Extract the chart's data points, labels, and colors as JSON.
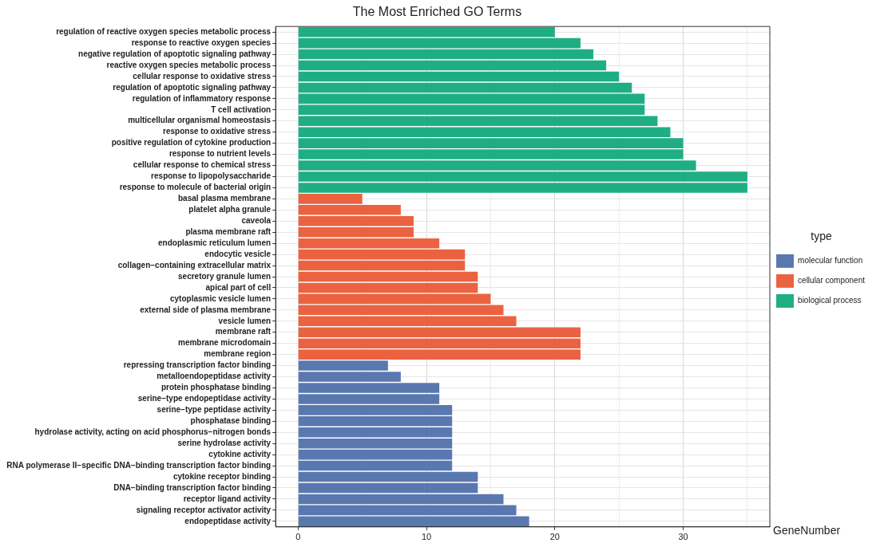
{
  "chart_data": {
    "type": "bar",
    "orientation": "horizontal",
    "title": "The Most Enriched GO Terms",
    "xlabel": "GeneNumber",
    "legend_title": "type",
    "legend": "right",
    "grid": true,
    "categories": [
      "regulation of reactive oxygen species metabolic process",
      "response to reactive oxygen species",
      "negative regulation of apoptotic signaling pathway",
      "reactive oxygen species metabolic process",
      "cellular response to oxidative stress",
      "regulation of apoptotic signaling pathway",
      "regulation of inflammatory response",
      "T cell activation",
      "multicellular organismal homeostasis",
      "response to oxidative stress",
      "positive regulation of cytokine production",
      "response to nutrient levels",
      "cellular response to chemical stress",
      "response to lipopolysaccharide",
      "response to molecule of bacterial origin",
      "basal plasma membrane",
      "platelet alpha granule",
      "caveola",
      "plasma membrane raft",
      "endoplasmic reticulum lumen",
      "endocytic vesicle",
      "collagen−containing extracellular matrix",
      "secretory granule lumen",
      "apical part of cell",
      "cytoplasmic vesicle lumen",
      "external side of plasma membrane",
      "vesicle lumen",
      "membrane raft",
      "membrane microdomain",
      "membrane region",
      "repressing transcription factor binding",
      "metalloendopeptidase activity",
      "protein phosphatase binding",
      "serine−type endopeptidase activity",
      "serine−type peptidase activity",
      "phosphatase binding",
      "hydrolase activity, acting on acid phosphorus−nitrogen bonds",
      "serine hydrolase activity",
      "cytokine activity",
      "RNA polymerase II−specific DNA−binding transcription factor binding",
      "cytokine receptor binding",
      "DNA−binding transcription factor binding",
      "receptor ligand activity",
      "signaling receptor activator activity",
      "endopeptidase activity"
    ],
    "series": [
      {
        "name": "molecular function",
        "color": "#5a78b0",
        "values": [
          null,
          null,
          null,
          null,
          null,
          null,
          null,
          null,
          null,
          null,
          null,
          null,
          null,
          null,
          null,
          null,
          null,
          null,
          null,
          null,
          null,
          null,
          null,
          null,
          null,
          null,
          null,
          null,
          null,
          null,
          7,
          8,
          11,
          11,
          12,
          12,
          12,
          12,
          12,
          12,
          14,
          14,
          16,
          17,
          18
        ]
      },
      {
        "name": "cellular component",
        "color": "#eb6240",
        "values": [
          null,
          null,
          null,
          null,
          null,
          null,
          null,
          null,
          null,
          null,
          null,
          null,
          null,
          null,
          null,
          5,
          8,
          9,
          9,
          11,
          13,
          13,
          14,
          14,
          15,
          16,
          17,
          22,
          22,
          22,
          null,
          null,
          null,
          null,
          null,
          null,
          null,
          null,
          null,
          null,
          null,
          null,
          null,
          null,
          null
        ]
      },
      {
        "name": "biological process",
        "color": "#1fae84",
        "values": [
          20,
          22,
          23,
          24,
          25,
          26,
          27,
          27,
          28,
          29,
          30,
          30,
          31,
          35,
          35,
          null,
          null,
          null,
          null,
          null,
          null,
          null,
          null,
          null,
          null,
          null,
          null,
          null,
          null,
          null,
          null,
          null,
          null,
          null,
          null,
          null,
          null,
          null,
          null,
          null,
          null,
          null,
          null,
          null,
          null
        ]
      }
    ],
    "xlim": [
      -1.75,
      36.75
    ],
    "xticks": [
      0,
      {
        "value": 5,
        "label": null
      },
      10,
      {
        "value": 15,
        "label": null
      },
      20,
      {
        "value": 25,
        "label": null
      },
      30,
      {
        "value": 35,
        "label": null
      }
    ]
  }
}
